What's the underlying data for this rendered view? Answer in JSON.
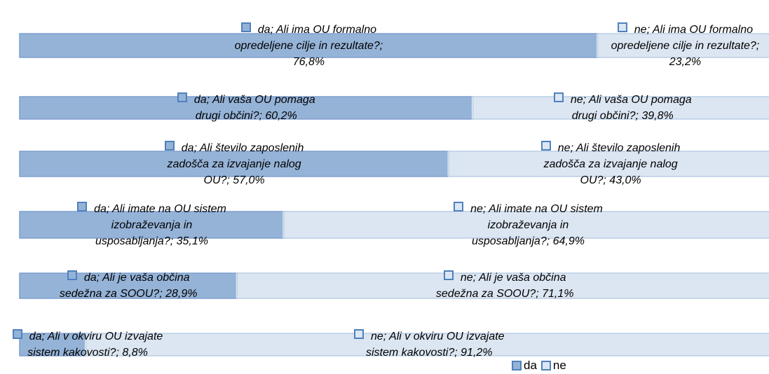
{
  "chart_data": {
    "type": "stacked_barh",
    "xlim": [
      0,
      100
    ],
    "series": [
      {
        "name": "da",
        "color": "#95b3d7",
        "values": [
          76.8,
          60.2,
          57.0,
          35.1,
          28.9,
          8.8
        ],
        "value_labels": [
          "da; Ali ima OU formalno opredeljene cilje in rezultate?; 76,8%",
          "da; Ali vaša OU pomaga drugi občini?; 60,2%",
          "da; Ali število zaposlenih zadošča za izvajanje nalog OU?; 57,0%",
          "da; Ali imate na OU sistem izobraževanja in usposabljanja?; 35,1%",
          "da; Ali je vaša občina sedežna za SOOU?; 28,9%",
          "da; Ali v okviru OU izvajate sistem kakovosti?; 8,8%"
        ]
      },
      {
        "name": "ne",
        "color": "#dce6f2",
        "values": [
          23.2,
          39.8,
          43.0,
          64.9,
          71.1,
          91.2
        ],
        "value_labels": [
          "ne; Ali ima OU formalno opredeljene cilje in rezultate?; 23,2%",
          "ne; Ali vaša OU pomaga drugi občini?; 39,8%",
          "ne; Ali število zaposlenih zadošča za izvajanje nalog OU?; 43,0%",
          "ne; Ali imate na OU sistem izobraževanja in usposabljanja?; 64,9%",
          "ne; Ali je vaša občina sedežna za SOOU?; 71,1%",
          "ne; Ali v okviru OU izvajate sistem kakovosti?; 91,2%"
        ]
      }
    ],
    "legend": "bottom-right"
  }
}
